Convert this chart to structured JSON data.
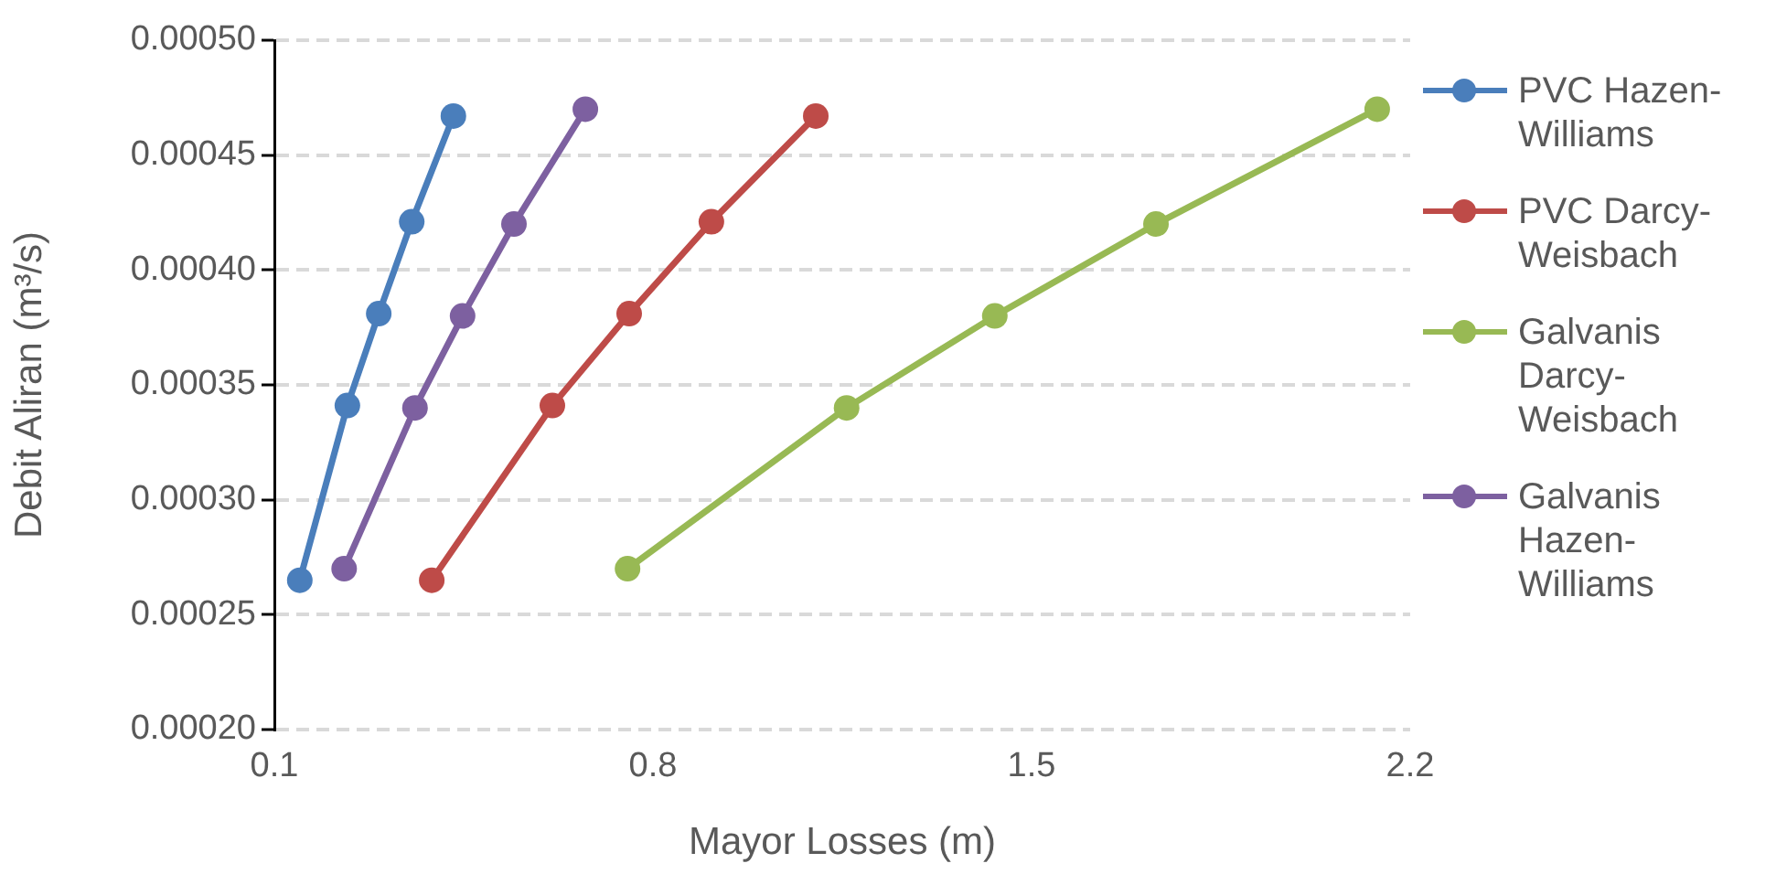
{
  "chart_data": {
    "type": "line",
    "xlabel": "Mayor Losses (m)",
    "ylabel": "Debit Aliran (m³/s)",
    "xlim": [
      0.1,
      2.2
    ],
    "xticks": [
      0.1,
      0.8,
      1.5,
      2.2
    ],
    "ylim": [
      0.0002,
      0.0005
    ],
    "yticks": [
      {
        "value": 0.0002,
        "label": "0.00020"
      },
      {
        "value": 0.00025,
        "label": "0.00025"
      },
      {
        "value": 0.0003,
        "label": "0.00030"
      },
      {
        "value": 0.00035,
        "label": "0.00035"
      },
      {
        "value": 0.0004,
        "label": "0.00040"
      },
      {
        "value": 0.00045,
        "label": "0.00045"
      },
      {
        "value": 0.0005,
        "label": "0.00050"
      }
    ],
    "grid": "y",
    "legend": "right",
    "marker": "circle",
    "line_style": "solid",
    "series": [
      {
        "name": "PVC Hazen-Williams",
        "color": "#4a7ebb",
        "x": [
          0.147,
          0.235,
          0.293,
          0.354,
          0.431
        ],
        "values": [
          0.000265,
          0.000341,
          0.000381,
          0.000421,
          0.000467
        ]
      },
      {
        "name": "PVC Darcy-Weisbach",
        "color": "#be4b48",
        "x": [
          0.391,
          0.614,
          0.756,
          0.908,
          1.101
        ],
        "values": [
          0.000265,
          0.000341,
          0.000381,
          0.000421,
          0.000467
        ]
      },
      {
        "name": "Galvanis Darcy-Weisbach",
        "color": "#98b954",
        "x": [
          0.753,
          1.158,
          1.432,
          1.73,
          2.139
        ],
        "values": [
          0.00027,
          0.00034,
          0.00038,
          0.00042,
          0.00047
        ]
      },
      {
        "name": "Galvanis Hazen-Williams",
        "color": "#7d60a0",
        "x": [
          0.229,
          0.36,
          0.448,
          0.543,
          0.675
        ],
        "values": [
          0.00027,
          0.00034,
          0.00038,
          0.00042,
          0.00047
        ]
      }
    ]
  }
}
